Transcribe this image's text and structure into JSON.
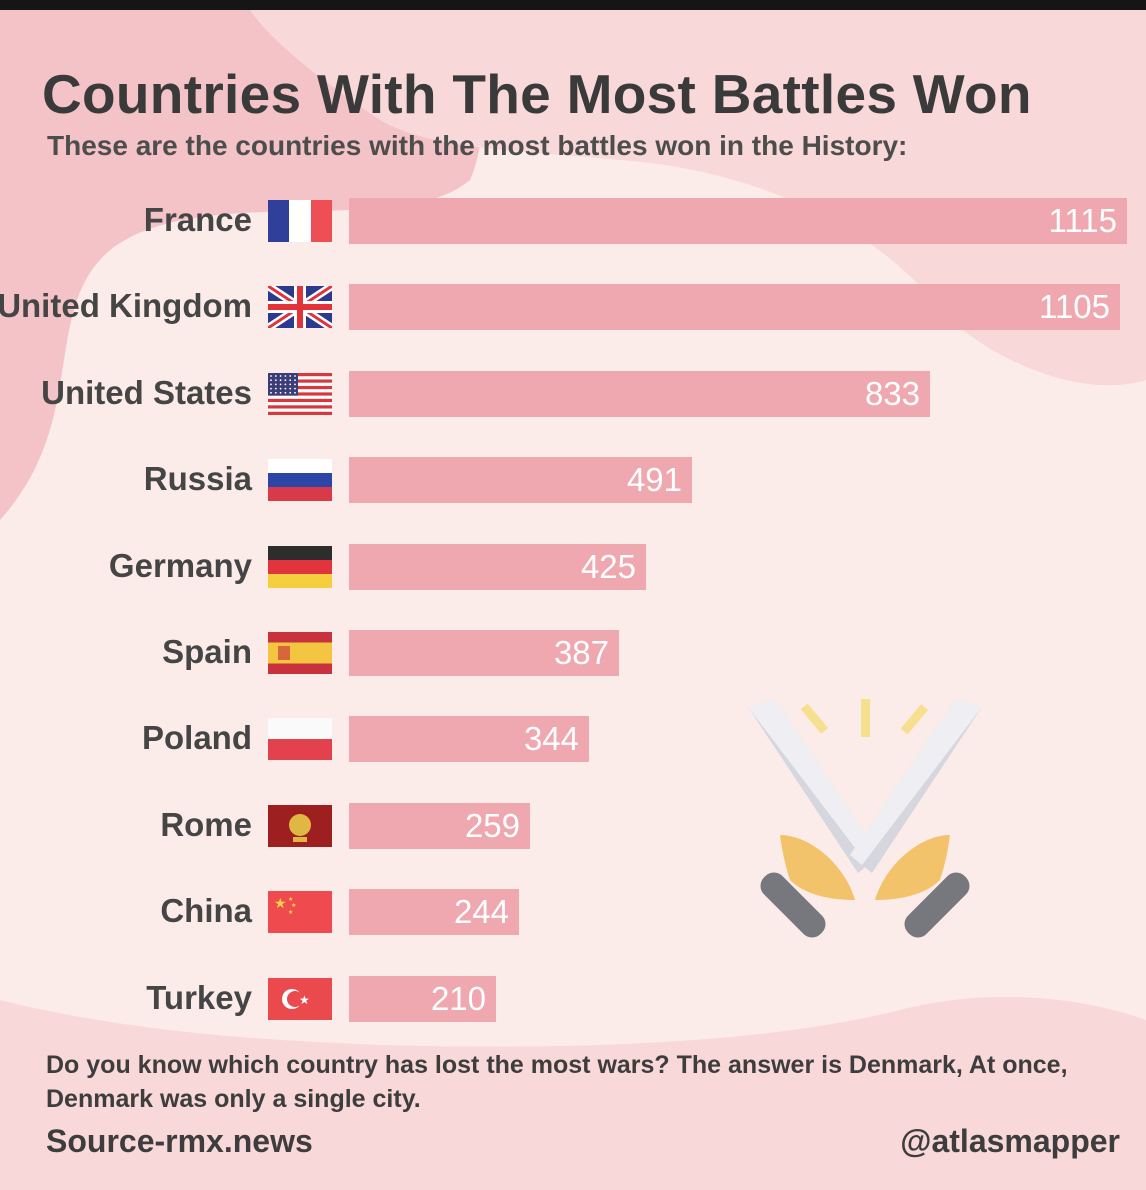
{
  "title": "Countries With The Most Battles Won",
  "subtitle": "These are the countries with the most battles won in the History:",
  "footnote": "Do you know which country has lost the most wars? The answer is Denmark, At once, Denmark was only a single city.",
  "source": "Source-rmx.news",
  "handle": "@atlasmapper",
  "colors": {
    "bar": "#f0a8b0",
    "text": "#3a3a3a",
    "background": "#fcece9",
    "blob": "#f3c3c7"
  },
  "icons": [
    "crossed-swords-icon"
  ],
  "chart_data": {
    "type": "bar",
    "orientation": "horizontal",
    "categories": [
      "France",
      "United Kingdom",
      "United States",
      "Russia",
      "Germany",
      "Spain",
      "Poland",
      "Rome",
      "China",
      "Turkey"
    ],
    "values": [
      1115,
      1105,
      833,
      491,
      425,
      387,
      344,
      259,
      244,
      210
    ],
    "flags": [
      "france-flag",
      "uk-flag",
      "usa-flag",
      "russia-flag",
      "germany-flag",
      "spain-flag",
      "poland-flag",
      "rome-flag",
      "china-flag",
      "turkey-flag"
    ],
    "xlim": [
      0,
      1115
    ],
    "title": "Countries With The Most Battles Won",
    "xlabel": "",
    "ylabel": "",
    "grid": false,
    "legend": "none"
  }
}
